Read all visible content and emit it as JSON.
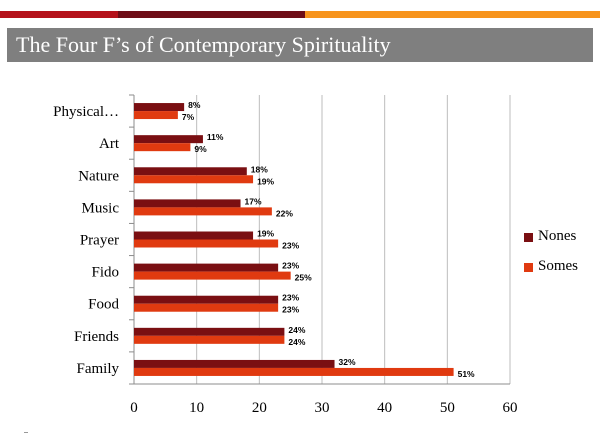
{
  "colors": {
    "bar_red": "#b5121b",
    "bar_maroon": "#6e0d17",
    "bar_orange": "#f7941d",
    "title_bg": "#7f7f7f",
    "nones": "#7a0f12",
    "somes": "#e03a10",
    "grid": "#bdbdbd"
  },
  "header": {
    "title": "The Four F’s of Contemporary Spirituality"
  },
  "chart_data": {
    "type": "bar",
    "orientation": "horizontal",
    "categories": [
      "Physical…",
      "Art",
      "Nature",
      "Music",
      "Prayer",
      "Fido",
      "Food",
      "Friends",
      "Family"
    ],
    "series": [
      {
        "name": "Nones",
        "values": [
          8,
          11,
          18,
          17,
          19,
          23,
          23,
          24,
          32
        ],
        "labels": [
          "8%",
          "11%",
          "18%",
          "17%",
          "19%",
          "23%",
          "23%",
          "24%",
          "32%"
        ]
      },
      {
        "name": "Somes",
        "values": [
          7,
          9,
          19,
          22,
          23,
          25,
          23,
          24,
          51
        ],
        "labels": [
          "7%",
          "9%",
          "19%",
          "22%",
          "23%",
          "25%",
          "23%",
          "24%",
          "51%"
        ]
      }
    ],
    "xlim": [
      0,
      60
    ],
    "xticks": [
      "0",
      "10",
      "20",
      "30",
      "40",
      "50",
      "60"
    ],
    "grid": true,
    "legend": "right"
  }
}
